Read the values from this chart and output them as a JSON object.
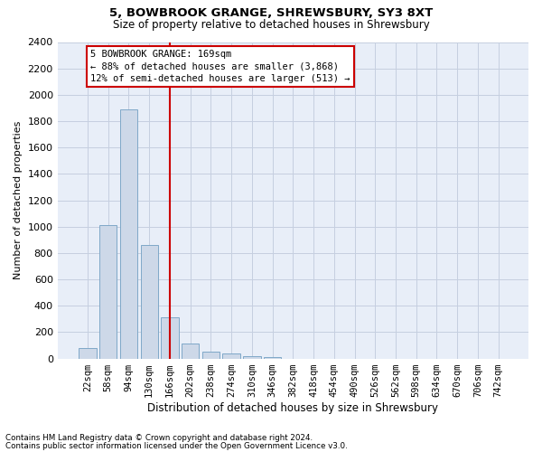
{
  "title1": "5, BOWBROOK GRANGE, SHREWSBURY, SY3 8XT",
  "title2": "Size of property relative to detached houses in Shrewsbury",
  "xlabel": "Distribution of detached houses by size in Shrewsbury",
  "ylabel": "Number of detached properties",
  "categories": [
    "22sqm",
    "58sqm",
    "94sqm",
    "130sqm",
    "166sqm",
    "202sqm",
    "238sqm",
    "274sqm",
    "310sqm",
    "346sqm",
    "382sqm",
    "418sqm",
    "454sqm",
    "490sqm",
    "526sqm",
    "562sqm",
    "598sqm",
    "634sqm",
    "670sqm",
    "706sqm",
    "742sqm"
  ],
  "values": [
    80,
    1010,
    1890,
    860,
    310,
    115,
    55,
    40,
    20,
    10,
    0,
    0,
    0,
    0,
    0,
    0,
    0,
    0,
    0,
    0,
    0
  ],
  "bar_color": "#cdd8e8",
  "bar_edge_color": "#7fa8c8",
  "vline_x_index": 4,
  "vline_color": "#cc0000",
  "annotation_line1": "5 BOWBROOK GRANGE: 169sqm",
  "annotation_line2": "← 88% of detached houses are smaller (3,868)",
  "annotation_line3": "12% of semi-detached houses are larger (513) →",
  "annotation_box_color": "#ffffff",
  "annotation_box_edge_color": "#cc0000",
  "ylim": [
    0,
    2400
  ],
  "yticks": [
    0,
    200,
    400,
    600,
    800,
    1000,
    1200,
    1400,
    1600,
    1800,
    2000,
    2200,
    2400
  ],
  "footnote1": "Contains HM Land Registry data © Crown copyright and database right 2024.",
  "footnote2": "Contains public sector information licensed under the Open Government Licence v3.0.",
  "bg_color": "#ffffff",
  "grid_color": "#c5cfe0",
  "plot_bg_color": "#e8eef8"
}
